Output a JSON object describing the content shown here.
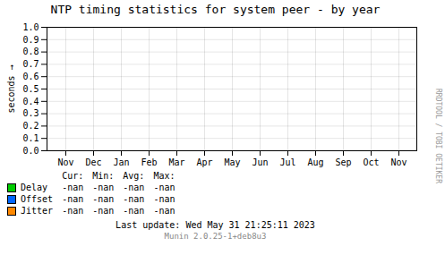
{
  "chart_data": {
    "type": "line",
    "title": "NTP timing statistics for system peer - by year",
    "y_label": "seconds",
    "categories": [
      "Nov",
      "Dec",
      "Jan",
      "Feb",
      "Mar",
      "Apr",
      "May",
      "Jun",
      "Jul",
      "Aug",
      "Sep",
      "Oct",
      "Nov"
    ],
    "series": [
      {
        "name": "Delay",
        "color": "#00cc00",
        "values": [
          null,
          null,
          null,
          null,
          null,
          null,
          null,
          null,
          null,
          null,
          null,
          null,
          null
        ],
        "stats": [
          "-nan",
          "-nan",
          "-nan",
          "-nan"
        ]
      },
      {
        "name": "Offset",
        "color": "#0066ff",
        "values": [
          null,
          null,
          null,
          null,
          null,
          null,
          null,
          null,
          null,
          null,
          null,
          null,
          null
        ],
        "stats": [
          "-nan",
          "-nan",
          "-nan",
          "-nan"
        ]
      },
      {
        "name": "Jitter",
        "color": "#ff8800",
        "values": [
          null,
          null,
          null,
          null,
          null,
          null,
          null,
          null,
          null,
          null,
          null,
          null,
          null
        ],
        "stats": [
          "-nan",
          "-nan",
          "-nan",
          "-nan"
        ]
      }
    ],
    "stats_headers": [
      "Cur:",
      "Min:",
      "Avg:",
      "Max:"
    ],
    "ylim": [
      0.0,
      1.0
    ],
    "yticks": [
      {
        "value": 0,
        "label": "0.0"
      },
      0.1,
      0.2,
      0.3,
      0.4,
      0.5,
      0.6,
      0.7,
      0.8,
      0.9,
      {
        "value": 1,
        "label": "1.0"
      }
    ],
    "grid": true,
    "legend": "bottom",
    "annotations": [
      "Last update: Wed May 31 21:25:11 2023",
      "Munin 2.0.25-1+deb8u3",
      "RRDTOOL / TOBI OETIKER"
    ]
  }
}
